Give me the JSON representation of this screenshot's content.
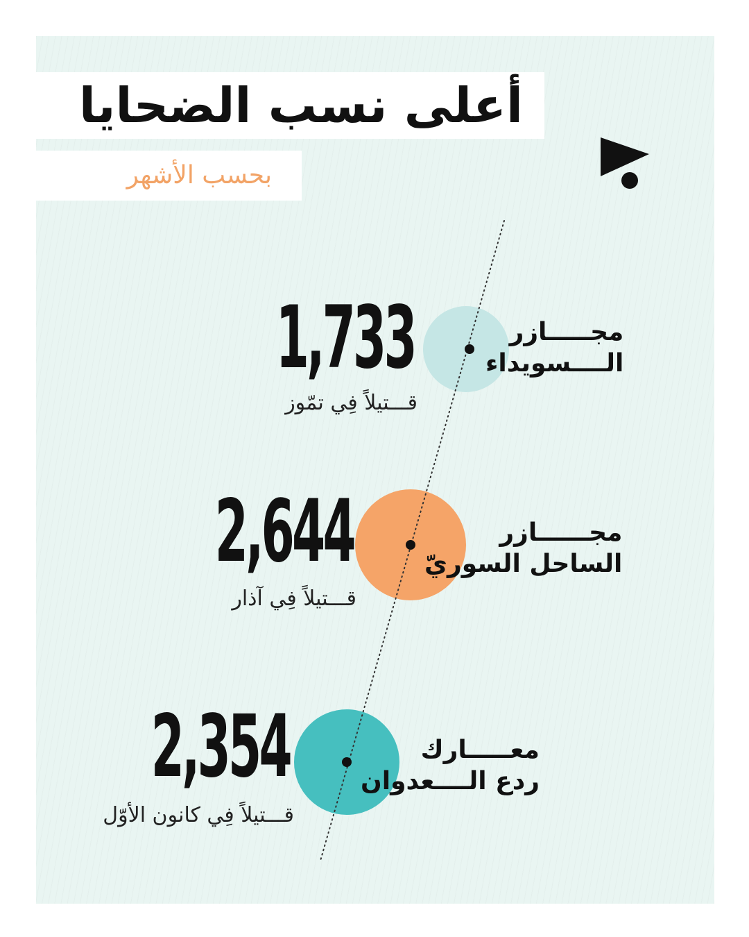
{
  "title": "أعلى نسب الضحايا",
  "subtitle": "بحسب الأشهر",
  "logo_icon": "play-dot-logo-icon",
  "colors": {
    "background": "#e9f5f2",
    "line": "#333333"
  },
  "chart_data": {
    "type": "scatter",
    "title": "أعلى نسب الضحايا",
    "subtitle": "بحسب الأشهر",
    "items": [
      {
        "value": 1733,
        "value_label": "1,733",
        "caption": "قـــتيلاً فِي تمّوز",
        "label_line1": "مجـــــازر",
        "label_line2": "الــــسويداء",
        "color": "#c5e6e5"
      },
      {
        "value": 2644,
        "value_label": "2,644",
        "caption": "قـــتيلاً فِي آذار",
        "label_line1": "مجــــــازر",
        "label_line2": "الساحل السوريّ",
        "color": "#f5a468"
      },
      {
        "value": 2354,
        "value_label": "2,354",
        "caption": "قـــتيلاً فِي كانون الأوّل",
        "label_line1": "معـــــارك",
        "label_line2": "ردع الــــعدوان",
        "color": "#46bfbf"
      }
    ]
  }
}
